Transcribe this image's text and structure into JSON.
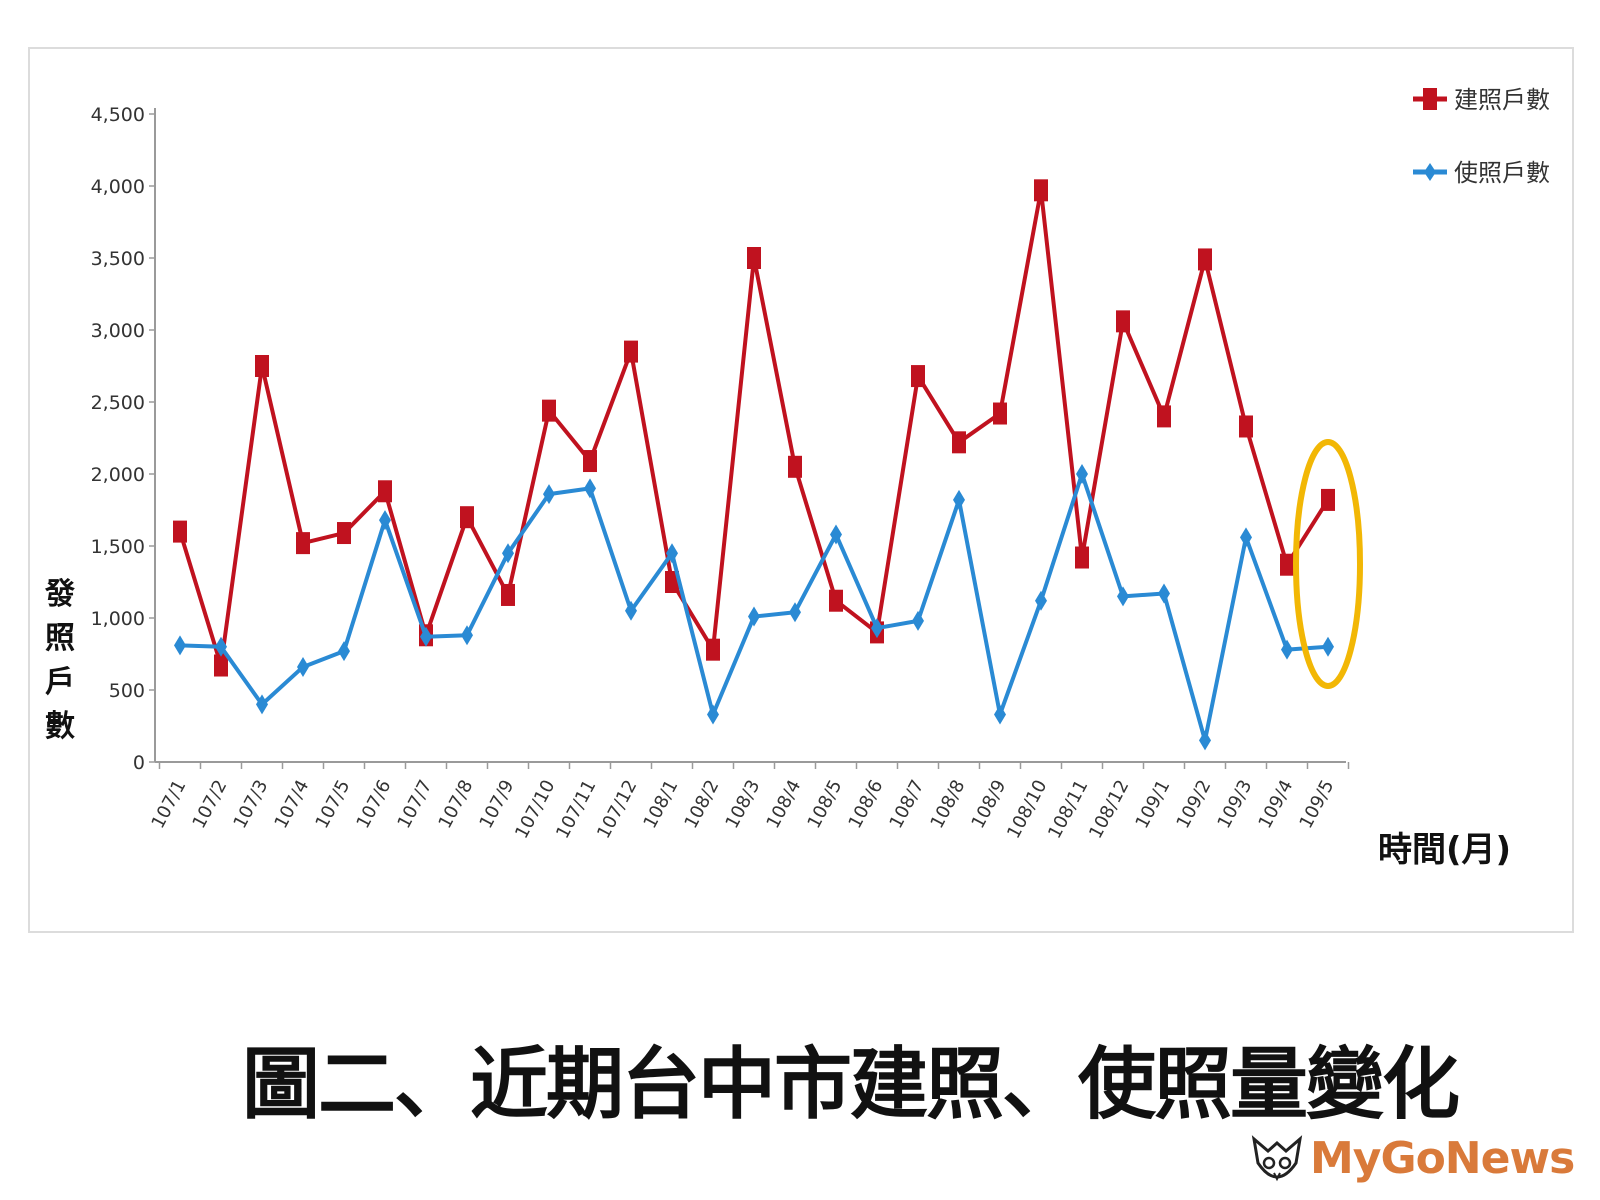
{
  "chart_data": {
    "type": "line",
    "categories": [
      "107/1",
      "107/2",
      "107/3",
      "107/4",
      "107/5",
      "107/6",
      "107/7",
      "107/8",
      "107/9",
      "107/10",
      "107/11",
      "107/12",
      "108/1",
      "108/2",
      "108/3",
      "108/4",
      "108/5",
      "108/6",
      "108/7",
      "108/8",
      "108/9",
      "108/10",
      "108/11",
      "108/12",
      "109/1",
      "109/2",
      "109/3",
      "109/4",
      "109/5"
    ],
    "series": [
      {
        "name": "建照戶數",
        "color": "#c0121f",
        "marker": "square",
        "values": [
          1600,
          670,
          2750,
          1520,
          1590,
          1880,
          880,
          1700,
          1160,
          2440,
          2090,
          2850,
          1250,
          780,
          3500,
          2050,
          1120,
          900,
          2680,
          2220,
          2420,
          3970,
          1420,
          3060,
          2400,
          3490,
          2330,
          1370,
          1820
        ]
      },
      {
        "name": "使照戶數",
        "color": "#2a8ad4",
        "marker": "diamond",
        "values": [
          810,
          800,
          400,
          660,
          770,
          1680,
          870,
          880,
          1450,
          1860,
          1900,
          1050,
          1450,
          330,
          1010,
          1040,
          1580,
          930,
          980,
          1820,
          330,
          1120,
          2000,
          1150,
          1170,
          150,
          1560,
          780,
          800
        ]
      }
    ],
    "yticks": [
      "0",
      "500",
      "1,000",
      "1,500",
      "2,000",
      "2,500",
      "3,000",
      "3,500",
      "4,000",
      "4,500"
    ],
    "ylim": [
      0,
      4500
    ],
    "ylabel": "發照戶數",
    "xlabel": "時間(月)",
    "legend_position": "top-right",
    "highlight": {
      "category": "109/5",
      "shape": "ellipse",
      "color": "#f2b705"
    },
    "grid": false
  },
  "caption": "圖二、近期台中市建照、使照量變化",
  "logo": {
    "text": "MyGoNews",
    "color": "#d97a3a",
    "icon": "owl-logo-icon"
  }
}
